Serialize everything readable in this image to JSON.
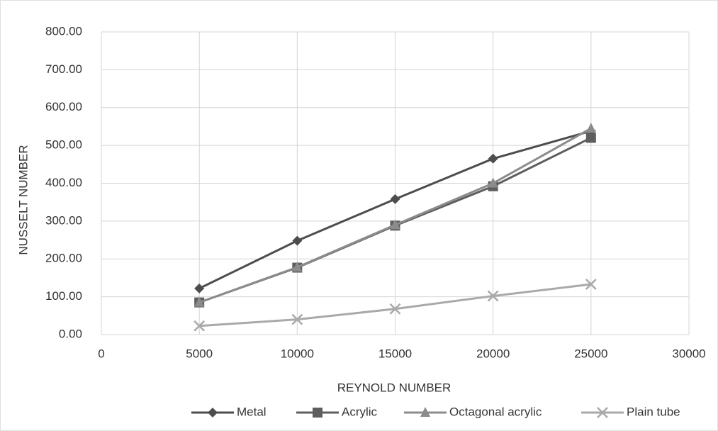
{
  "chart_data": {
    "type": "line",
    "x_label": "REYNOLD NUMBER",
    "y_label": "NUSSELT NUMBER",
    "x": [
      5000,
      10000,
      15000,
      20000,
      25000
    ],
    "series": [
      {
        "name": "Metal",
        "color": "#4d4d4d",
        "marker": "diamond",
        "values": [
          122,
          248,
          358,
          465,
          538
        ]
      },
      {
        "name": "Acrylic",
        "color": "#5e5e5e",
        "marker": "square",
        "values": [
          85,
          177,
          288,
          392,
          520
        ]
      },
      {
        "name": "Octagonal acrylic",
        "color": "#8c8c8c",
        "marker": "triangle",
        "values": [
          85,
          178,
          290,
          400,
          545
        ]
      },
      {
        "name": "Plain tube",
        "color": "#a9a9a9",
        "marker": "x",
        "values": [
          23,
          40,
          68,
          102,
          133
        ]
      }
    ],
    "xlim": [
      0,
      30000
    ],
    "xticks": [
      0,
      5000,
      10000,
      15000,
      20000,
      25000,
      30000
    ],
    "ylim": [
      0,
      800
    ],
    "yticks": [
      {
        "value": 0,
        "label": "0.00"
      },
      {
        "value": 100,
        "label": "100.00"
      },
      {
        "value": 200,
        "label": "200.00"
      },
      {
        "value": 300,
        "label": "300.00"
      },
      {
        "value": 400,
        "label": "400.00"
      },
      {
        "value": 500,
        "label": "500.00"
      },
      {
        "value": 600,
        "label": "600.00"
      },
      {
        "value": 700,
        "label": "700.00"
      },
      {
        "value": 800,
        "label": "800.00"
      }
    ],
    "grid": true,
    "legend": "bottom"
  }
}
